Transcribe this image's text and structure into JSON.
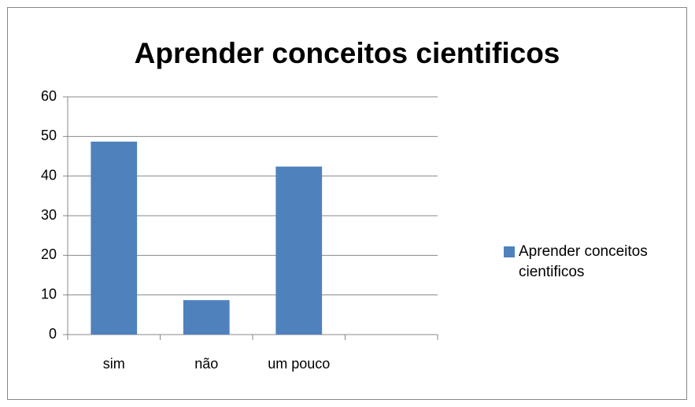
{
  "chart_data": {
    "type": "bar",
    "title": "Aprender conceitos cientificos",
    "categories": [
      "sim",
      "não",
      "um pouco",
      null
    ],
    "series": [
      {
        "name": "Aprender conceitos cientificos",
        "color": "#4f81bd",
        "values": [
          48.7,
          8.7,
          42.4,
          null
        ]
      }
    ],
    "ylim": [
      0,
      60
    ],
    "yticks": [
      0,
      10,
      20,
      30,
      40,
      50,
      60
    ],
    "grid": true,
    "legend": "right"
  }
}
